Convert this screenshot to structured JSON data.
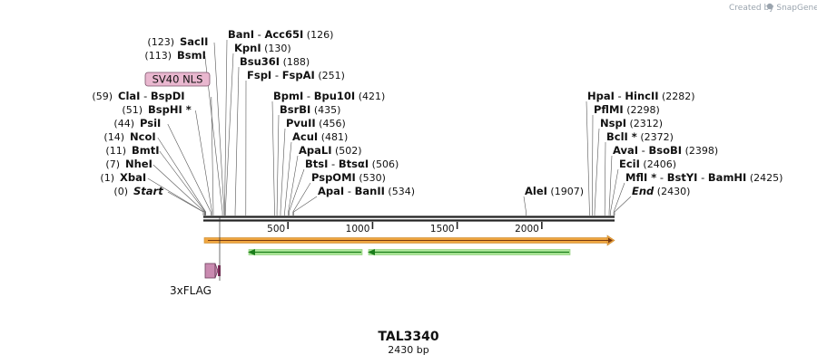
{
  "credit": "Created by SnapGene",
  "title": "TAL3340",
  "length_label": "2430 bp",
  "length_bp": 2430,
  "ticks": [
    500,
    1000,
    1500,
    2000
  ],
  "colors": {
    "orange_feature": "#f0a640",
    "green_feature": "#3cb43c",
    "sv40_box": "#e9b7cf",
    "flag_feature": "#d07bb0"
  },
  "features": {
    "sv40_label": "SV40 NLS",
    "flag_label": "3xFLAG"
  },
  "sites": [
    {
      "pos": 0,
      "label_pos": "(0)",
      "parts": [
        "Start"
      ],
      "italic": true
    },
    {
      "pos": 1,
      "label_pos": "(1)",
      "parts": [
        "XbaI"
      ]
    },
    {
      "pos": 7,
      "label_pos": "(7)",
      "parts": [
        "NheI"
      ]
    },
    {
      "pos": 11,
      "label_pos": "(11)",
      "parts": [
        "BmtI"
      ]
    },
    {
      "pos": 14,
      "label_pos": "(14)",
      "parts": [
        "NcoI"
      ]
    },
    {
      "pos": 44,
      "label_pos": "(44)",
      "parts": [
        "PsiI"
      ]
    },
    {
      "pos": 51,
      "label_pos": "(51)",
      "parts": [
        "BspHI *"
      ]
    },
    {
      "pos": 59,
      "label_pos": "(59)",
      "parts": [
        "ClaI",
        "BspDI"
      ]
    },
    {
      "pos": 113,
      "label_pos": "(113)",
      "parts": [
        "BsmI"
      ]
    },
    {
      "pos": 123,
      "label_pos": "(123)",
      "parts": [
        "SacII"
      ]
    },
    {
      "pos": 126,
      "label_pos": "(126)",
      "parts": [
        "BanI",
        "Acc65I"
      ]
    },
    {
      "pos": 130,
      "label_pos": "(130)",
      "parts": [
        "KpnI"
      ]
    },
    {
      "pos": 188,
      "label_pos": "(188)",
      "parts": [
        "Bsu36I"
      ]
    },
    {
      "pos": 251,
      "label_pos": "(251)",
      "parts": [
        "FspI",
        "FspAI"
      ]
    },
    {
      "pos": 421,
      "label_pos": "(421)",
      "parts": [
        "BpmI",
        "Bpu10I"
      ]
    },
    {
      "pos": 435,
      "label_pos": "(435)",
      "parts": [
        "BsrBI"
      ]
    },
    {
      "pos": 456,
      "label_pos": "(456)",
      "parts": [
        "PvuII"
      ]
    },
    {
      "pos": 481,
      "label_pos": "(481)",
      "parts": [
        "AcuI"
      ]
    },
    {
      "pos": 502,
      "label_pos": "(502)",
      "parts": [
        "ApaLI"
      ]
    },
    {
      "pos": 506,
      "label_pos": "(506)",
      "parts": [
        "BtsI",
        "BtsαI"
      ]
    },
    {
      "pos": 530,
      "label_pos": "(530)",
      "parts": [
        "PspOMI"
      ]
    },
    {
      "pos": 534,
      "label_pos": "(534)",
      "parts": [
        "ApaI",
        "BanII"
      ]
    },
    {
      "pos": 1907,
      "label_pos": "(1907)",
      "parts": [
        "AleI"
      ]
    },
    {
      "pos": 2282,
      "label_pos": "(2282)",
      "parts": [
        "HpaI",
        "HincII"
      ]
    },
    {
      "pos": 2298,
      "label_pos": "(2298)",
      "parts": [
        "PflMI"
      ]
    },
    {
      "pos": 2312,
      "label_pos": "(2312)",
      "parts": [
        "NspI"
      ]
    },
    {
      "pos": 2372,
      "label_pos": "(2372)",
      "parts": [
        "BclI *"
      ]
    },
    {
      "pos": 2398,
      "label_pos": "(2398)",
      "parts": [
        "AvaI",
        "BsoBI"
      ]
    },
    {
      "pos": 2406,
      "label_pos": "(2406)",
      "parts": [
        "EciI"
      ]
    },
    {
      "pos": 2425,
      "label_pos": "(2425)",
      "parts": [
        "MflI *",
        "BstYI",
        "BamHI"
      ]
    },
    {
      "pos": 2430,
      "label_pos": "(2430)",
      "parts": [
        "End"
      ],
      "italic": true
    }
  ]
}
